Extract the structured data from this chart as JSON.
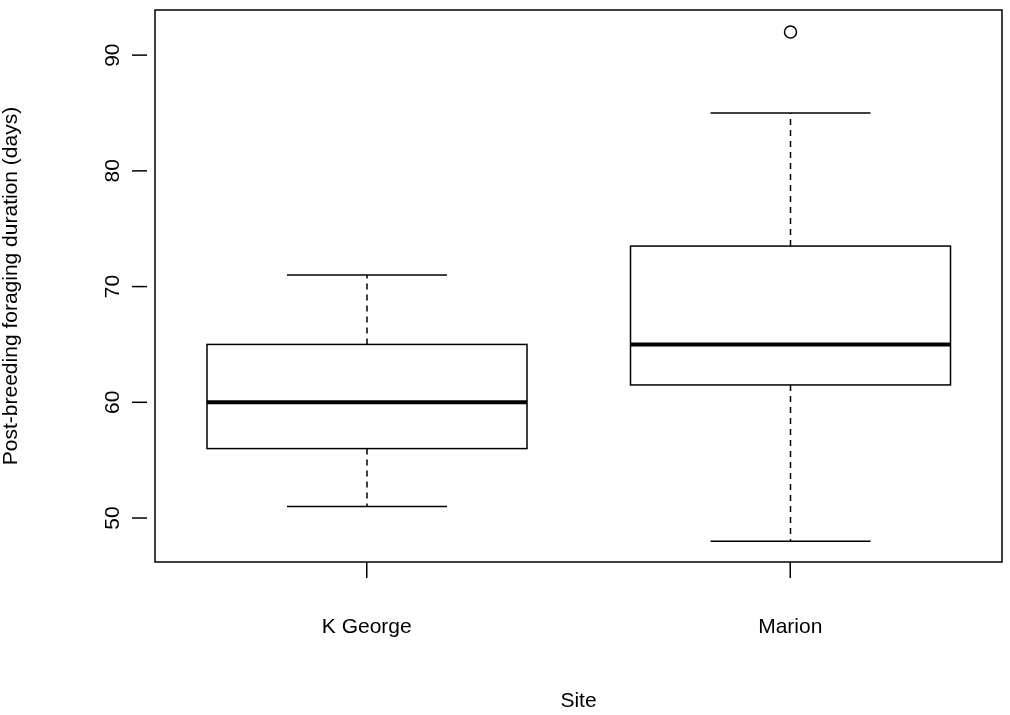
{
  "chart_data": {
    "type": "box",
    "xlabel": "Site",
    "ylabel": "Post-breeding foraging duration (days)",
    "categories": [
      "K George",
      "Marion"
    ],
    "boxes": [
      {
        "low": 51,
        "q1": 56,
        "median": 60,
        "q3": 65,
        "high": 71
      },
      {
        "low": 48,
        "q1": 61.5,
        "median": 65,
        "q3": 73.5,
        "high": 85,
        "outliers": [
          92
        ]
      }
    ],
    "ylim": [
      46.2,
      93.9
    ],
    "yticks": [
      50,
      60,
      70,
      80,
      90
    ]
  }
}
